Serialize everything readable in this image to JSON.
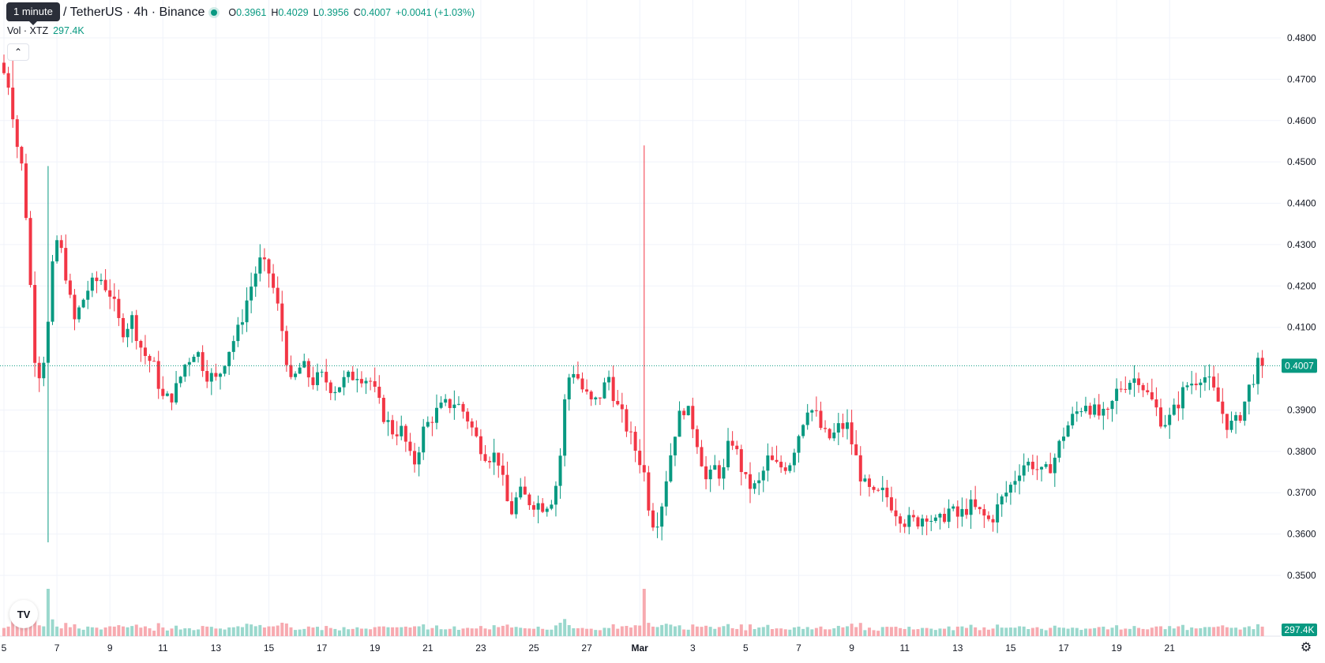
{
  "legend": {
    "tooltip": "1 minute",
    "title": "/ TetherUS · 4h · Binance",
    "o_label": "O",
    "o_value": "0.3961",
    "h_label": "H",
    "h_value": "0.4029",
    "l_label": "L",
    "l_value": "0.3956",
    "c_label": "C",
    "c_value": "0.4007",
    "change": "+0.0041 (+1.03%)",
    "vol_label": "Vol · XTZ",
    "vol_value": "297.4K"
  },
  "colors": {
    "up": "#089981",
    "down": "#F23645",
    "vol_up": "#9ad8cd",
    "vol_down": "#f7aab0",
    "grid": "#f0f3fa"
  },
  "icons": {
    "collapse": "chevron-up-icon",
    "logo": "tradingview-logo-icon",
    "settings": "gear-icon"
  },
  "chart_data": {
    "type": "candlestick",
    "title": "/ TetherUS · 4h · Binance",
    "interval": "4h",
    "xlabel": "",
    "ylabel": "",
    "ylim": [
      0.345,
      0.485
    ],
    "y_ticks": [
      "0.4800",
      "0.4700",
      "0.4600",
      "0.4500",
      "0.4400",
      "0.4300",
      "0.4200",
      "0.4100",
      "0.3900",
      "0.3800",
      "0.3700",
      "0.3600",
      "0.3500"
    ],
    "y_tick_values": [
      0.48,
      0.47,
      0.46,
      0.45,
      0.44,
      0.43,
      0.42,
      0.41,
      0.39,
      0.38,
      0.37,
      0.36,
      0.35
    ],
    "x_ticks": [
      "5",
      "7",
      "9",
      "11",
      "13",
      "15",
      "17",
      "19",
      "21",
      "23",
      "25",
      "27",
      "Mar",
      "3",
      "5",
      "7",
      "9",
      "11",
      "13",
      "15",
      "17",
      "19",
      "21"
    ],
    "x_tick_days": [
      5,
      7,
      9,
      11,
      13,
      15,
      17,
      19,
      21,
      23,
      25,
      27,
      29,
      31,
      33,
      35,
      37,
      39,
      41,
      43,
      45,
      47,
      49
    ],
    "last_price": 0.4007,
    "last_price_label": "0.4007",
    "volume_label": "297.4K",
    "grid": true,
    "anchors": [
      [
        5.0,
        0.474
      ],
      [
        5.4,
        0.468
      ],
      [
        5.6,
        0.456
      ],
      [
        5.9,
        0.447
      ],
      [
        6.1,
        0.428
      ],
      [
        6.3,
        0.404
      ],
      [
        6.55,
        0.398
      ],
      [
        6.8,
        0.408
      ],
      [
        7.1,
        0.432
      ],
      [
        7.4,
        0.427
      ],
      [
        7.8,
        0.411
      ],
      [
        8.3,
        0.419
      ],
      [
        8.8,
        0.422
      ],
      [
        9.2,
        0.418
      ],
      [
        9.6,
        0.409
      ],
      [
        10.0,
        0.412
      ],
      [
        10.4,
        0.404
      ],
      [
        10.8,
        0.401
      ],
      [
        11.2,
        0.392
      ],
      [
        11.6,
        0.394
      ],
      [
        12.0,
        0.401
      ],
      [
        12.4,
        0.405
      ],
      [
        12.8,
        0.399
      ],
      [
        13.2,
        0.397
      ],
      [
        13.6,
        0.404
      ],
      [
        14.0,
        0.409
      ],
      [
        14.4,
        0.418
      ],
      [
        14.8,
        0.426
      ],
      [
        15.2,
        0.423
      ],
      [
        15.6,
        0.412
      ],
      [
        16.0,
        0.396
      ],
      [
        16.4,
        0.401
      ],
      [
        16.8,
        0.397
      ],
      [
        17.2,
        0.398
      ],
      [
        17.6,
        0.395
      ],
      [
        18.0,
        0.397
      ],
      [
        18.5,
        0.399
      ],
      [
        19.0,
        0.397
      ],
      [
        19.4,
        0.39
      ],
      [
        19.8,
        0.385
      ],
      [
        20.2,
        0.385
      ],
      [
        20.6,
        0.376
      ],
      [
        21.0,
        0.385
      ],
      [
        21.4,
        0.389
      ],
      [
        21.8,
        0.391
      ],
      [
        22.2,
        0.392
      ],
      [
        22.6,
        0.389
      ],
      [
        23.0,
        0.383
      ],
      [
        23.4,
        0.379
      ],
      [
        23.8,
        0.379
      ],
      [
        24.1,
        0.369
      ],
      [
        24.3,
        0.365
      ],
      [
        24.6,
        0.37
      ],
      [
        25.0,
        0.368
      ],
      [
        25.5,
        0.367
      ],
      [
        25.8,
        0.368
      ],
      [
        26.1,
        0.374
      ],
      [
        26.4,
        0.397
      ],
      [
        26.7,
        0.4
      ],
      [
        27.0,
        0.395
      ],
      [
        27.4,
        0.391
      ],
      [
        27.7,
        0.394
      ],
      [
        28.0,
        0.398
      ],
      [
        28.3,
        0.391
      ],
      [
        28.6,
        0.387
      ],
      [
        28.9,
        0.382
      ],
      [
        29.3,
        0.376
      ],
      [
        29.6,
        0.363
      ],
      [
        29.9,
        0.364
      ],
      [
        30.2,
        0.375
      ],
      [
        30.5,
        0.385
      ],
      [
        30.8,
        0.391
      ],
      [
        31.1,
        0.388
      ],
      [
        31.4,
        0.381
      ],
      [
        31.7,
        0.372
      ],
      [
        32.0,
        0.376
      ],
      [
        32.3,
        0.374
      ],
      [
        32.6,
        0.384
      ],
      [
        32.9,
        0.378
      ],
      [
        33.2,
        0.372
      ],
      [
        33.6,
        0.371
      ],
      [
        34.0,
        0.378
      ],
      [
        34.4,
        0.376
      ],
      [
        34.8,
        0.377
      ],
      [
        35.2,
        0.385
      ],
      [
        35.5,
        0.391
      ],
      [
        35.8,
        0.389
      ],
      [
        36.1,
        0.384
      ],
      [
        36.4,
        0.383
      ],
      [
        36.7,
        0.386
      ],
      [
        37.0,
        0.386
      ],
      [
        37.3,
        0.379
      ],
      [
        37.6,
        0.372
      ],
      [
        38.0,
        0.369
      ],
      [
        38.4,
        0.37
      ],
      [
        38.8,
        0.366
      ],
      [
        39.2,
        0.363
      ],
      [
        39.6,
        0.363
      ],
      [
        40.0,
        0.365
      ],
      [
        40.4,
        0.362
      ],
      [
        40.8,
        0.366
      ],
      [
        41.2,
        0.364
      ],
      [
        41.6,
        0.367
      ],
      [
        42.0,
        0.365
      ],
      [
        42.4,
        0.363
      ],
      [
        42.8,
        0.368
      ],
      [
        43.2,
        0.372
      ],
      [
        43.6,
        0.377
      ],
      [
        44.0,
        0.377
      ],
      [
        44.4,
        0.374
      ],
      [
        44.8,
        0.378
      ],
      [
        45.2,
        0.385
      ],
      [
        45.6,
        0.389
      ],
      [
        46.0,
        0.392
      ],
      [
        46.4,
        0.389
      ],
      [
        46.8,
        0.388
      ],
      [
        47.2,
        0.395
      ],
      [
        47.6,
        0.397
      ],
      [
        48.0,
        0.398
      ],
      [
        48.3,
        0.394
      ],
      [
        48.6,
        0.391
      ],
      [
        48.9,
        0.387
      ],
      [
        49.2,
        0.388
      ],
      [
        49.5,
        0.392
      ],
      [
        49.8,
        0.396
      ],
      [
        50.1,
        0.397
      ],
      [
        50.4,
        0.399
      ],
      [
        50.7,
        0.396
      ],
      [
        51.0,
        0.392
      ],
      [
        51.3,
        0.387
      ],
      [
        51.6,
        0.386
      ],
      [
        51.9,
        0.39
      ],
      [
        52.2,
        0.396
      ],
      [
        52.5,
        0.4007
      ]
    ],
    "wicks": [
      {
        "day": 5.3,
        "high": 0.476
      },
      {
        "day": 6.6,
        "high": 0.449
      },
      {
        "day": 6.7,
        "low": 0.358
      },
      {
        "day": 29.2,
        "high": 0.454
      },
      {
        "day": 29.6,
        "low": 0.359
      }
    ]
  }
}
